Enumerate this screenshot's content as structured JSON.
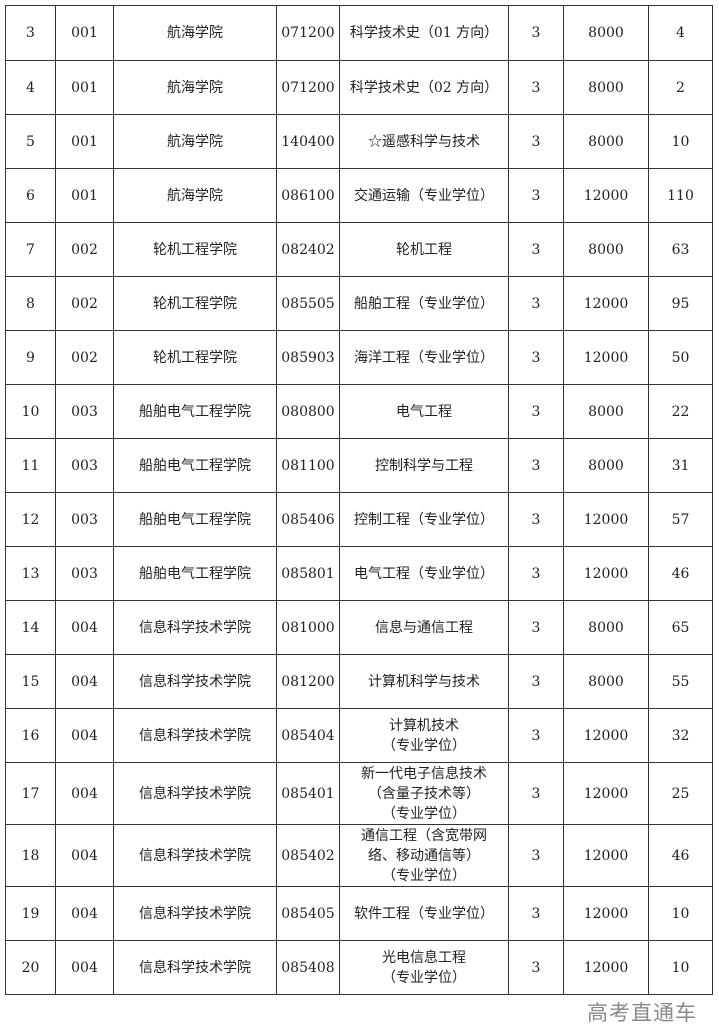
{
  "rows": [
    [
      "3",
      "001",
      "航海学院",
      "071200",
      "科学技术史（01 方向）",
      "3",
      "8000",
      "4"
    ],
    [
      "4",
      "001",
      "航海学院",
      "071200",
      "科学技术史（02 方向）",
      "3",
      "8000",
      "2"
    ],
    [
      "5",
      "001",
      "航海学院",
      "140400",
      "☆遥感科学与技术",
      "3",
      "8000",
      "10"
    ],
    [
      "6",
      "001",
      "航海学院",
      "086100",
      "交通运输（专业学位）",
      "3",
      "12000",
      "110"
    ],
    [
      "7",
      "002",
      "轮机工程学院",
      "082402",
      "轮机工程",
      "3",
      "8000",
      "63"
    ],
    [
      "8",
      "002",
      "轮机工程学院",
      "085505",
      "船舶工程（专业学位）",
      "3",
      "12000",
      "95"
    ],
    [
      "9",
      "002",
      "轮机工程学院",
      "085903",
      "海洋工程（专业学位）",
      "3",
      "12000",
      "50"
    ],
    [
      "10",
      "003",
      "船舶电气工程学院",
      "080800",
      "电气工程",
      "3",
      "8000",
      "22"
    ],
    [
      "11",
      "003",
      "船舶电气工程学院",
      "081100",
      "控制科学与工程",
      "3",
      "8000",
      "31"
    ],
    [
      "12",
      "003",
      "船舶电气工程学院",
      "085406",
      "控制工程（专业学位）",
      "3",
      "12000",
      "57"
    ],
    [
      "13",
      "003",
      "船舶电气工程学院",
      "085801",
      "电气工程（专业学位）",
      "3",
      "12000",
      "46"
    ],
    [
      "14",
      "004",
      "信息科学技术学院",
      "081000",
      "信息与通信工程",
      "3",
      "8000",
      "65"
    ],
    [
      "15",
      "004",
      "信息科学技术学院",
      "081200",
      "计算机科学与技术",
      "3",
      "8000",
      "55"
    ],
    [
      "16",
      "004",
      "信息科学技术学院",
      "085404",
      "计算机技术\n（专业学位）",
      "3",
      "12000",
      "32"
    ],
    [
      "17",
      "004",
      "信息科学技术学院",
      "085401",
      "新一代电子信息技术\n（含量子技术等）\n（专业学位）",
      "3",
      "12000",
      "25"
    ],
    [
      "18",
      "004",
      "信息科学技术学院",
      "085402",
      "通信工程（含宽带网\n络、移动通信等）\n（专业学位）",
      "3",
      "12000",
      "46"
    ],
    [
      "19",
      "004",
      "信息科学技术学院",
      "085405",
      "软件工程（专业学位）",
      "3",
      "12000",
      "10"
    ],
    [
      "20",
      "004",
      "信息科学技术学院",
      "085408",
      "光电信息工程\n（专业学位）",
      "3",
      "12000",
      "10"
    ]
  ],
  "watermark": "高考直通车"
}
